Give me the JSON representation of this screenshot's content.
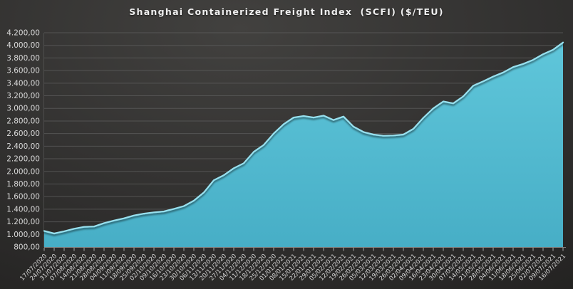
{
  "chart_data": {
    "type": "area",
    "title": "Shanghai Containerized Freight Index  (SCFI) ($/TEU)",
    "series_name": "SCFI",
    "xlabel": "",
    "ylabel": "",
    "ylim": [
      800,
      4200
    ],
    "y_tick_step": 200,
    "grid": true,
    "legend_position": "none",
    "y_tick_labels": [
      "800,00",
      "1.000,00",
      "1.200,00",
      "1.400,00",
      "1.600,00",
      "1.800,00",
      "2.000,00",
      "2.200,00",
      "2.400,00",
      "2.600,00",
      "2.800,00",
      "3.000,00",
      "3.200,00",
      "3.400,00",
      "3.600,00",
      "3.800,00",
      "4.000,00",
      "4.200,00"
    ],
    "x": [
      "17/07/2020",
      "24/07/2020",
      "31/07/2020",
      "07/08/2020",
      "14/08/2020",
      "21/08/2020",
      "28/08/2020",
      "04/09/2020",
      "11/09/2020",
      "18/09/2020",
      "25/09/2020",
      "02/10/2020",
      "09/10/2020",
      "16/10/2020",
      "23/10/2020",
      "30/10/2020",
      "06/11/2020",
      "13/11/2020",
      "20/11/2020",
      "27/11/2020",
      "04/12/2020",
      "11/12/2020",
      "18/12/2020",
      "25/12/2020",
      "01/01/2021",
      "08/01/2021",
      "15/01/2021",
      "22/01/2021",
      "29/01/2021",
      "05/02/2021",
      "12/02/2021",
      "19/02/2021",
      "26/02/2021",
      "05/03/2021",
      "12/03/2021",
      "19/03/2021",
      "26/03/2021",
      "02/04/2021",
      "09/04/2021",
      "16/04/2021",
      "23/04/2021",
      "30/04/2021",
      "07/05/2021",
      "14/05/2021",
      "21/05/2021",
      "28/05/2021",
      "04/06/2021",
      "11/06/2021",
      "18/06/2021",
      "25/06/2021",
      "02/07/2021",
      "09/07/2021",
      "16/07/2021"
    ],
    "values": [
      1055,
      1015,
      1050,
      1090,
      1120,
      1125,
      1180,
      1220,
      1255,
      1300,
      1330,
      1350,
      1365,
      1405,
      1450,
      1535,
      1665,
      1860,
      1940,
      2050,
      2130,
      2310,
      2420,
      2600,
      2750,
      2855,
      2880,
      2855,
      2885,
      2815,
      2870,
      2710,
      2625,
      2585,
      2565,
      2570,
      2585,
      2675,
      2850,
      3000,
      3110,
      3080,
      3190,
      3360,
      3430,
      3505,
      3570,
      3655,
      3705,
      3770,
      3860,
      3930,
      4045
    ],
    "colors": {
      "area_fill_top": "#5fc6da",
      "area_fill_bottom": "#47aec6",
      "line": "#98e0ee",
      "gridline": "#5e5e5e",
      "axis_line": "#9a9a9a",
      "tick_mark": "#b5b5b5",
      "tick_label": "#d9d9d9",
      "title_color": "#f0f0f0",
      "background_center": "#42413f",
      "background_mid": "#302f2e",
      "background_edge": "#1c1b1a"
    }
  }
}
